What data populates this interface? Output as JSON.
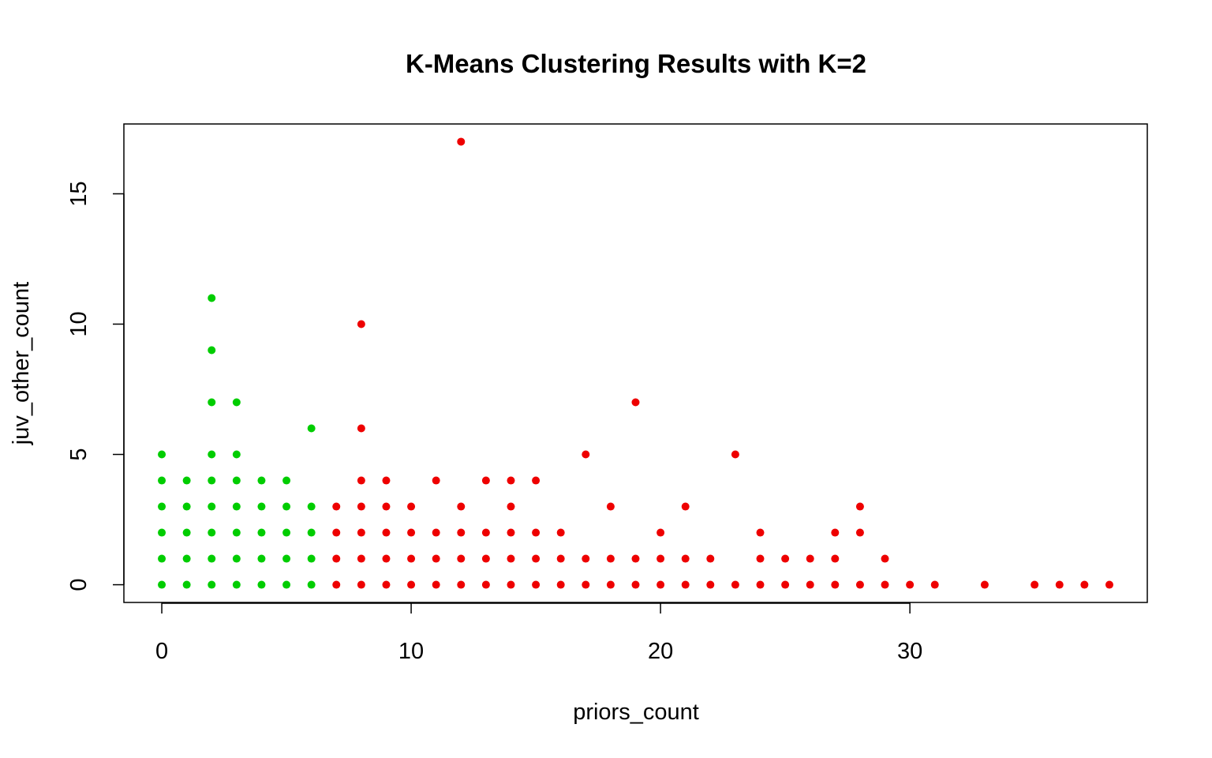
{
  "chart_data": {
    "type": "scatter",
    "title": "K-Means Clustering Results with K=2",
    "xlabel": "priors_count",
    "ylabel": "juv_other_count",
    "xlim": [
      -1.52,
      39.52
    ],
    "ylim": [
      -0.68,
      17.68
    ],
    "xticks": [
      0,
      10,
      20,
      30
    ],
    "yticks": [
      0,
      5,
      10,
      15
    ],
    "grid": false,
    "legend": "none",
    "colors": {
      "cluster_1": "#00CD00",
      "cluster_2": "#EE0000"
    },
    "series": [
      {
        "color": "#00CD00",
        "points": [
          [
            0,
            0
          ],
          [
            0,
            1
          ],
          [
            0,
            2
          ],
          [
            0,
            3
          ],
          [
            0,
            4
          ],
          [
            0,
            5
          ],
          [
            1,
            0
          ],
          [
            1,
            1
          ],
          [
            1,
            2
          ],
          [
            1,
            3
          ],
          [
            1,
            4
          ],
          [
            2,
            0
          ],
          [
            2,
            1
          ],
          [
            2,
            2
          ],
          [
            2,
            3
          ],
          [
            2,
            4
          ],
          [
            2,
            5
          ],
          [
            2,
            7
          ],
          [
            2,
            9
          ],
          [
            2,
            11
          ],
          [
            3,
            0
          ],
          [
            3,
            1
          ],
          [
            3,
            2
          ],
          [
            3,
            3
          ],
          [
            3,
            4
          ],
          [
            3,
            5
          ],
          [
            3,
            7
          ],
          [
            4,
            0
          ],
          [
            4,
            1
          ],
          [
            4,
            2
          ],
          [
            4,
            3
          ],
          [
            4,
            4
          ],
          [
            5,
            0
          ],
          [
            5,
            1
          ],
          [
            5,
            2
          ],
          [
            5,
            3
          ],
          [
            5,
            4
          ],
          [
            6,
            0
          ],
          [
            6,
            1
          ],
          [
            6,
            2
          ],
          [
            6,
            3
          ],
          [
            6,
            6
          ]
        ]
      },
      {
        "color": "#EE0000",
        "points": [
          [
            7,
            0
          ],
          [
            7,
            1
          ],
          [
            7,
            2
          ],
          [
            7,
            3
          ],
          [
            8,
            0
          ],
          [
            8,
            1
          ],
          [
            8,
            2
          ],
          [
            8,
            3
          ],
          [
            8,
            4
          ],
          [
            8,
            6
          ],
          [
            8,
            10
          ],
          [
            9,
            0
          ],
          [
            9,
            1
          ],
          [
            9,
            2
          ],
          [
            9,
            3
          ],
          [
            9,
            4
          ],
          [
            10,
            0
          ],
          [
            10,
            1
          ],
          [
            10,
            2
          ],
          [
            10,
            3
          ],
          [
            11,
            0
          ],
          [
            11,
            1
          ],
          [
            11,
            2
          ],
          [
            11,
            4
          ],
          [
            12,
            0
          ],
          [
            12,
            1
          ],
          [
            12,
            2
          ],
          [
            12,
            3
          ],
          [
            12,
            17
          ],
          [
            13,
            0
          ],
          [
            13,
            1
          ],
          [
            13,
            2
          ],
          [
            13,
            4
          ],
          [
            14,
            0
          ],
          [
            14,
            1
          ],
          [
            14,
            2
          ],
          [
            14,
            3
          ],
          [
            14,
            4
          ],
          [
            15,
            0
          ],
          [
            15,
            1
          ],
          [
            15,
            2
          ],
          [
            15,
            4
          ],
          [
            16,
            0
          ],
          [
            16,
            1
          ],
          [
            16,
            2
          ],
          [
            17,
            0
          ],
          [
            17,
            1
          ],
          [
            17,
            5
          ],
          [
            18,
            0
          ],
          [
            18,
            1
          ],
          [
            18,
            3
          ],
          [
            19,
            0
          ],
          [
            19,
            1
          ],
          [
            19,
            7
          ],
          [
            20,
            0
          ],
          [
            20,
            1
          ],
          [
            20,
            2
          ],
          [
            21,
            0
          ],
          [
            21,
            1
          ],
          [
            21,
            3
          ],
          [
            22,
            0
          ],
          [
            22,
            1
          ],
          [
            23,
            0
          ],
          [
            23,
            5
          ],
          [
            24,
            0
          ],
          [
            24,
            1
          ],
          [
            24,
            2
          ],
          [
            25,
            0
          ],
          [
            25,
            1
          ],
          [
            26,
            0
          ],
          [
            26,
            1
          ],
          [
            27,
            0
          ],
          [
            27,
            1
          ],
          [
            27,
            2
          ],
          [
            28,
            0
          ],
          [
            28,
            2
          ],
          [
            28,
            3
          ],
          [
            29,
            0
          ],
          [
            29,
            1
          ],
          [
            30,
            0
          ],
          [
            31,
            0
          ],
          [
            33,
            0
          ],
          [
            35,
            0
          ],
          [
            36,
            0
          ],
          [
            37,
            0
          ],
          [
            38,
            0
          ]
        ]
      }
    ]
  }
}
